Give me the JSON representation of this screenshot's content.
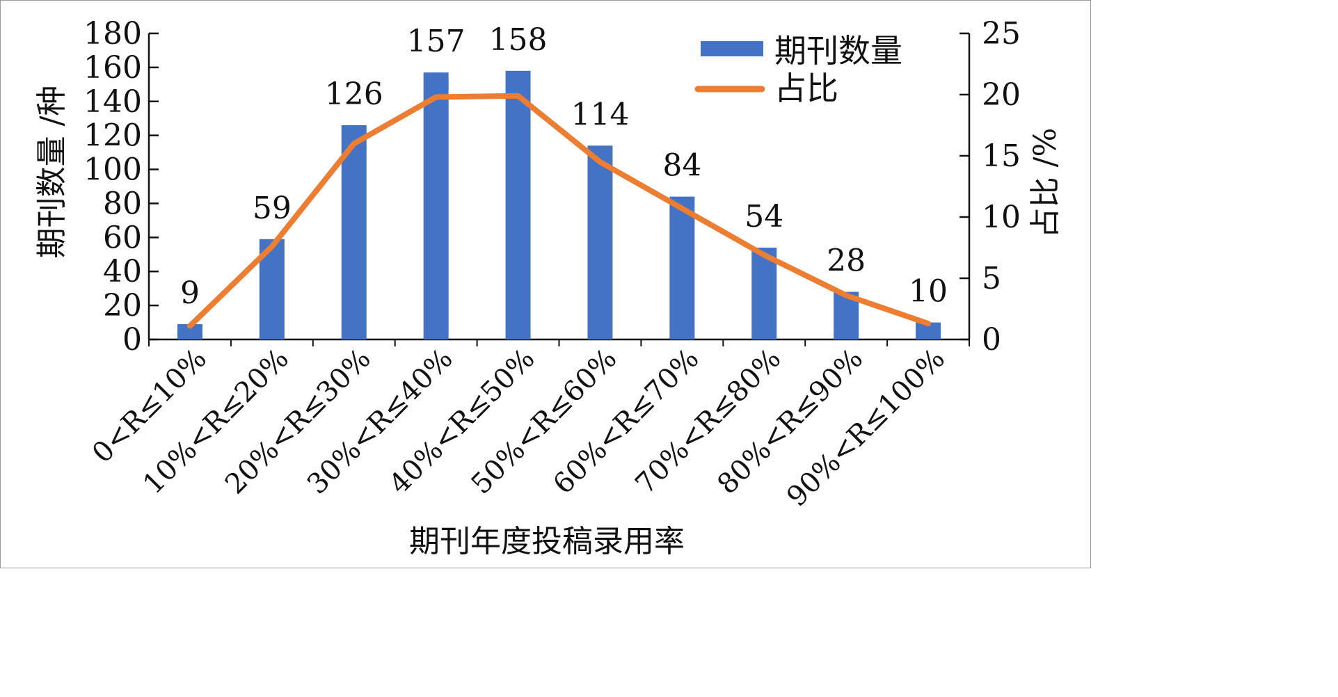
{
  "chart_data": {
    "type": "bar",
    "categories": [
      "0<R≤10%",
      "10%<R≤20%",
      "20%<R≤30%",
      "30%<R≤40%",
      "40%<R≤50%",
      "50%<R≤60%",
      "60%<R≤70%",
      "70%<R≤80%",
      "80%<R≤90%",
      "90%<R≤100%"
    ],
    "series": [
      {
        "name": "期刊数量",
        "type": "bar",
        "axis": "left",
        "color": "#4472c4",
        "values": [
          9,
          59,
          126,
          157,
          158,
          114,
          84,
          54,
          28,
          10
        ],
        "data_labels": [
          "9",
          "59",
          "126",
          "157",
          "158",
          "114",
          "84",
          "54",
          "28",
          "10"
        ]
      },
      {
        "name": "占比",
        "type": "line",
        "axis": "right",
        "color": "#ed7d31",
        "values": [
          1.1,
          7.6,
          16.0,
          19.8,
          19.9,
          14.5,
          10.7,
          6.9,
          3.6,
          1.3
        ]
      }
    ],
    "xlabel": "期刊年度投稿录用率",
    "ylabel": "期刊数量 /种",
    "y2label": "占比 /%",
    "ylim": [
      0,
      180
    ],
    "y2lim": [
      0,
      25
    ],
    "yticks": [
      "0",
      "20",
      "40",
      "60",
      "80",
      "100",
      "120",
      "140",
      "160",
      "180"
    ],
    "y2ticks": [
      "0",
      "5",
      "10",
      "15",
      "20",
      "25"
    ],
    "legend_position": "top-right",
    "grid": false
  }
}
